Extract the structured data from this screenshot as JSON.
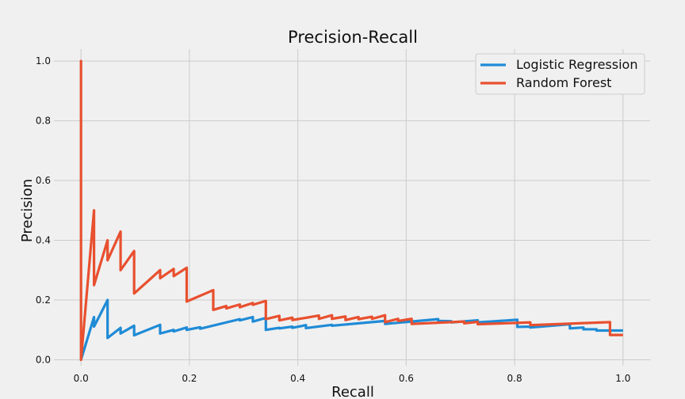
{
  "chart_data": {
    "type": "line",
    "title": "Precision-Recall",
    "xlabel": "Recall",
    "ylabel": "Precision",
    "xlim": [
      -0.05,
      1.05
    ],
    "ylim": [
      -0.02,
      1.04
    ],
    "grid": true,
    "legend_position": "top-right",
    "x_ticks": [
      0.0,
      0.2,
      0.4,
      0.6,
      0.8,
      1.0
    ],
    "x_tick_labels": [
      "0.0",
      "0.2",
      "0.4",
      "0.6",
      "0.8",
      "1.0"
    ],
    "y_ticks": [
      0.0,
      0.2,
      0.4,
      0.6,
      0.8,
      1.0
    ],
    "y_tick_labels": [
      "0.0",
      "0.2",
      "0.4",
      "0.6",
      "0.8",
      "1.0"
    ],
    "series": [
      {
        "name": "Logistic Regression",
        "color": "#1f8bd6",
        "x": [
          0.0,
          0.024,
          0.024,
          0.049,
          0.049,
          0.073,
          0.073,
          0.098,
          0.098,
          0.146,
          0.146,
          0.171,
          0.171,
          0.195,
          0.195,
          0.22,
          0.22,
          0.293,
          0.293,
          0.317,
          0.317,
          0.341,
          0.341,
          0.366,
          0.366,
          0.39,
          0.39,
          0.415,
          0.415,
          0.463,
          0.463,
          0.561,
          0.561,
          0.659,
          0.659,
          0.683,
          0.683,
          0.732,
          0.732,
          0.805,
          0.805,
          0.829,
          0.829,
          0.902,
          0.902,
          0.927,
          0.927,
          0.951,
          0.951,
          1.0
        ],
        "y": [
          0.0,
          0.143,
          0.111,
          0.2,
          0.073,
          0.107,
          0.088,
          0.114,
          0.082,
          0.117,
          0.088,
          0.1,
          0.095,
          0.108,
          0.1,
          0.109,
          0.104,
          0.136,
          0.132,
          0.143,
          0.128,
          0.14,
          0.1,
          0.107,
          0.105,
          0.111,
          0.107,
          0.116,
          0.106,
          0.117,
          0.114,
          0.13,
          0.12,
          0.136,
          0.13,
          0.129,
          0.125,
          0.132,
          0.125,
          0.134,
          0.11,
          0.111,
          0.108,
          0.119,
          0.105,
          0.108,
          0.102,
          0.102,
          0.098,
          0.098
        ]
      },
      {
        "name": "Random Forest",
        "color": "#e8502f",
        "x": [
          0.0,
          0.0,
          0.0,
          0.024,
          0.024,
          0.049,
          0.049,
          0.073,
          0.073,
          0.098,
          0.098,
          0.146,
          0.146,
          0.171,
          0.171,
          0.195,
          0.195,
          0.244,
          0.244,
          0.268,
          0.268,
          0.293,
          0.293,
          0.317,
          0.317,
          0.341,
          0.341,
          0.366,
          0.366,
          0.39,
          0.39,
          0.439,
          0.439,
          0.463,
          0.463,
          0.488,
          0.488,
          0.512,
          0.512,
          0.537,
          0.537,
          0.561,
          0.561,
          0.585,
          0.585,
          0.61,
          0.61,
          0.707,
          0.707,
          0.732,
          0.732,
          0.829,
          0.829,
          0.976,
          0.976,
          1.0
        ],
        "y": [
          0.0,
          1.0,
          0.0,
          0.5,
          0.25,
          0.4,
          0.333,
          0.429,
          0.3,
          0.364,
          0.222,
          0.3,
          0.273,
          0.304,
          0.28,
          0.308,
          0.195,
          0.233,
          0.167,
          0.18,
          0.172,
          0.185,
          0.176,
          0.19,
          0.184,
          0.197,
          0.136,
          0.147,
          0.132,
          0.141,
          0.133,
          0.148,
          0.137,
          0.149,
          0.137,
          0.145,
          0.133,
          0.143,
          0.136,
          0.144,
          0.137,
          0.149,
          0.126,
          0.137,
          0.13,
          0.137,
          0.12,
          0.128,
          0.122,
          0.127,
          0.119,
          0.125,
          0.116,
          0.126,
          0.083,
          0.083
        ]
      }
    ]
  }
}
